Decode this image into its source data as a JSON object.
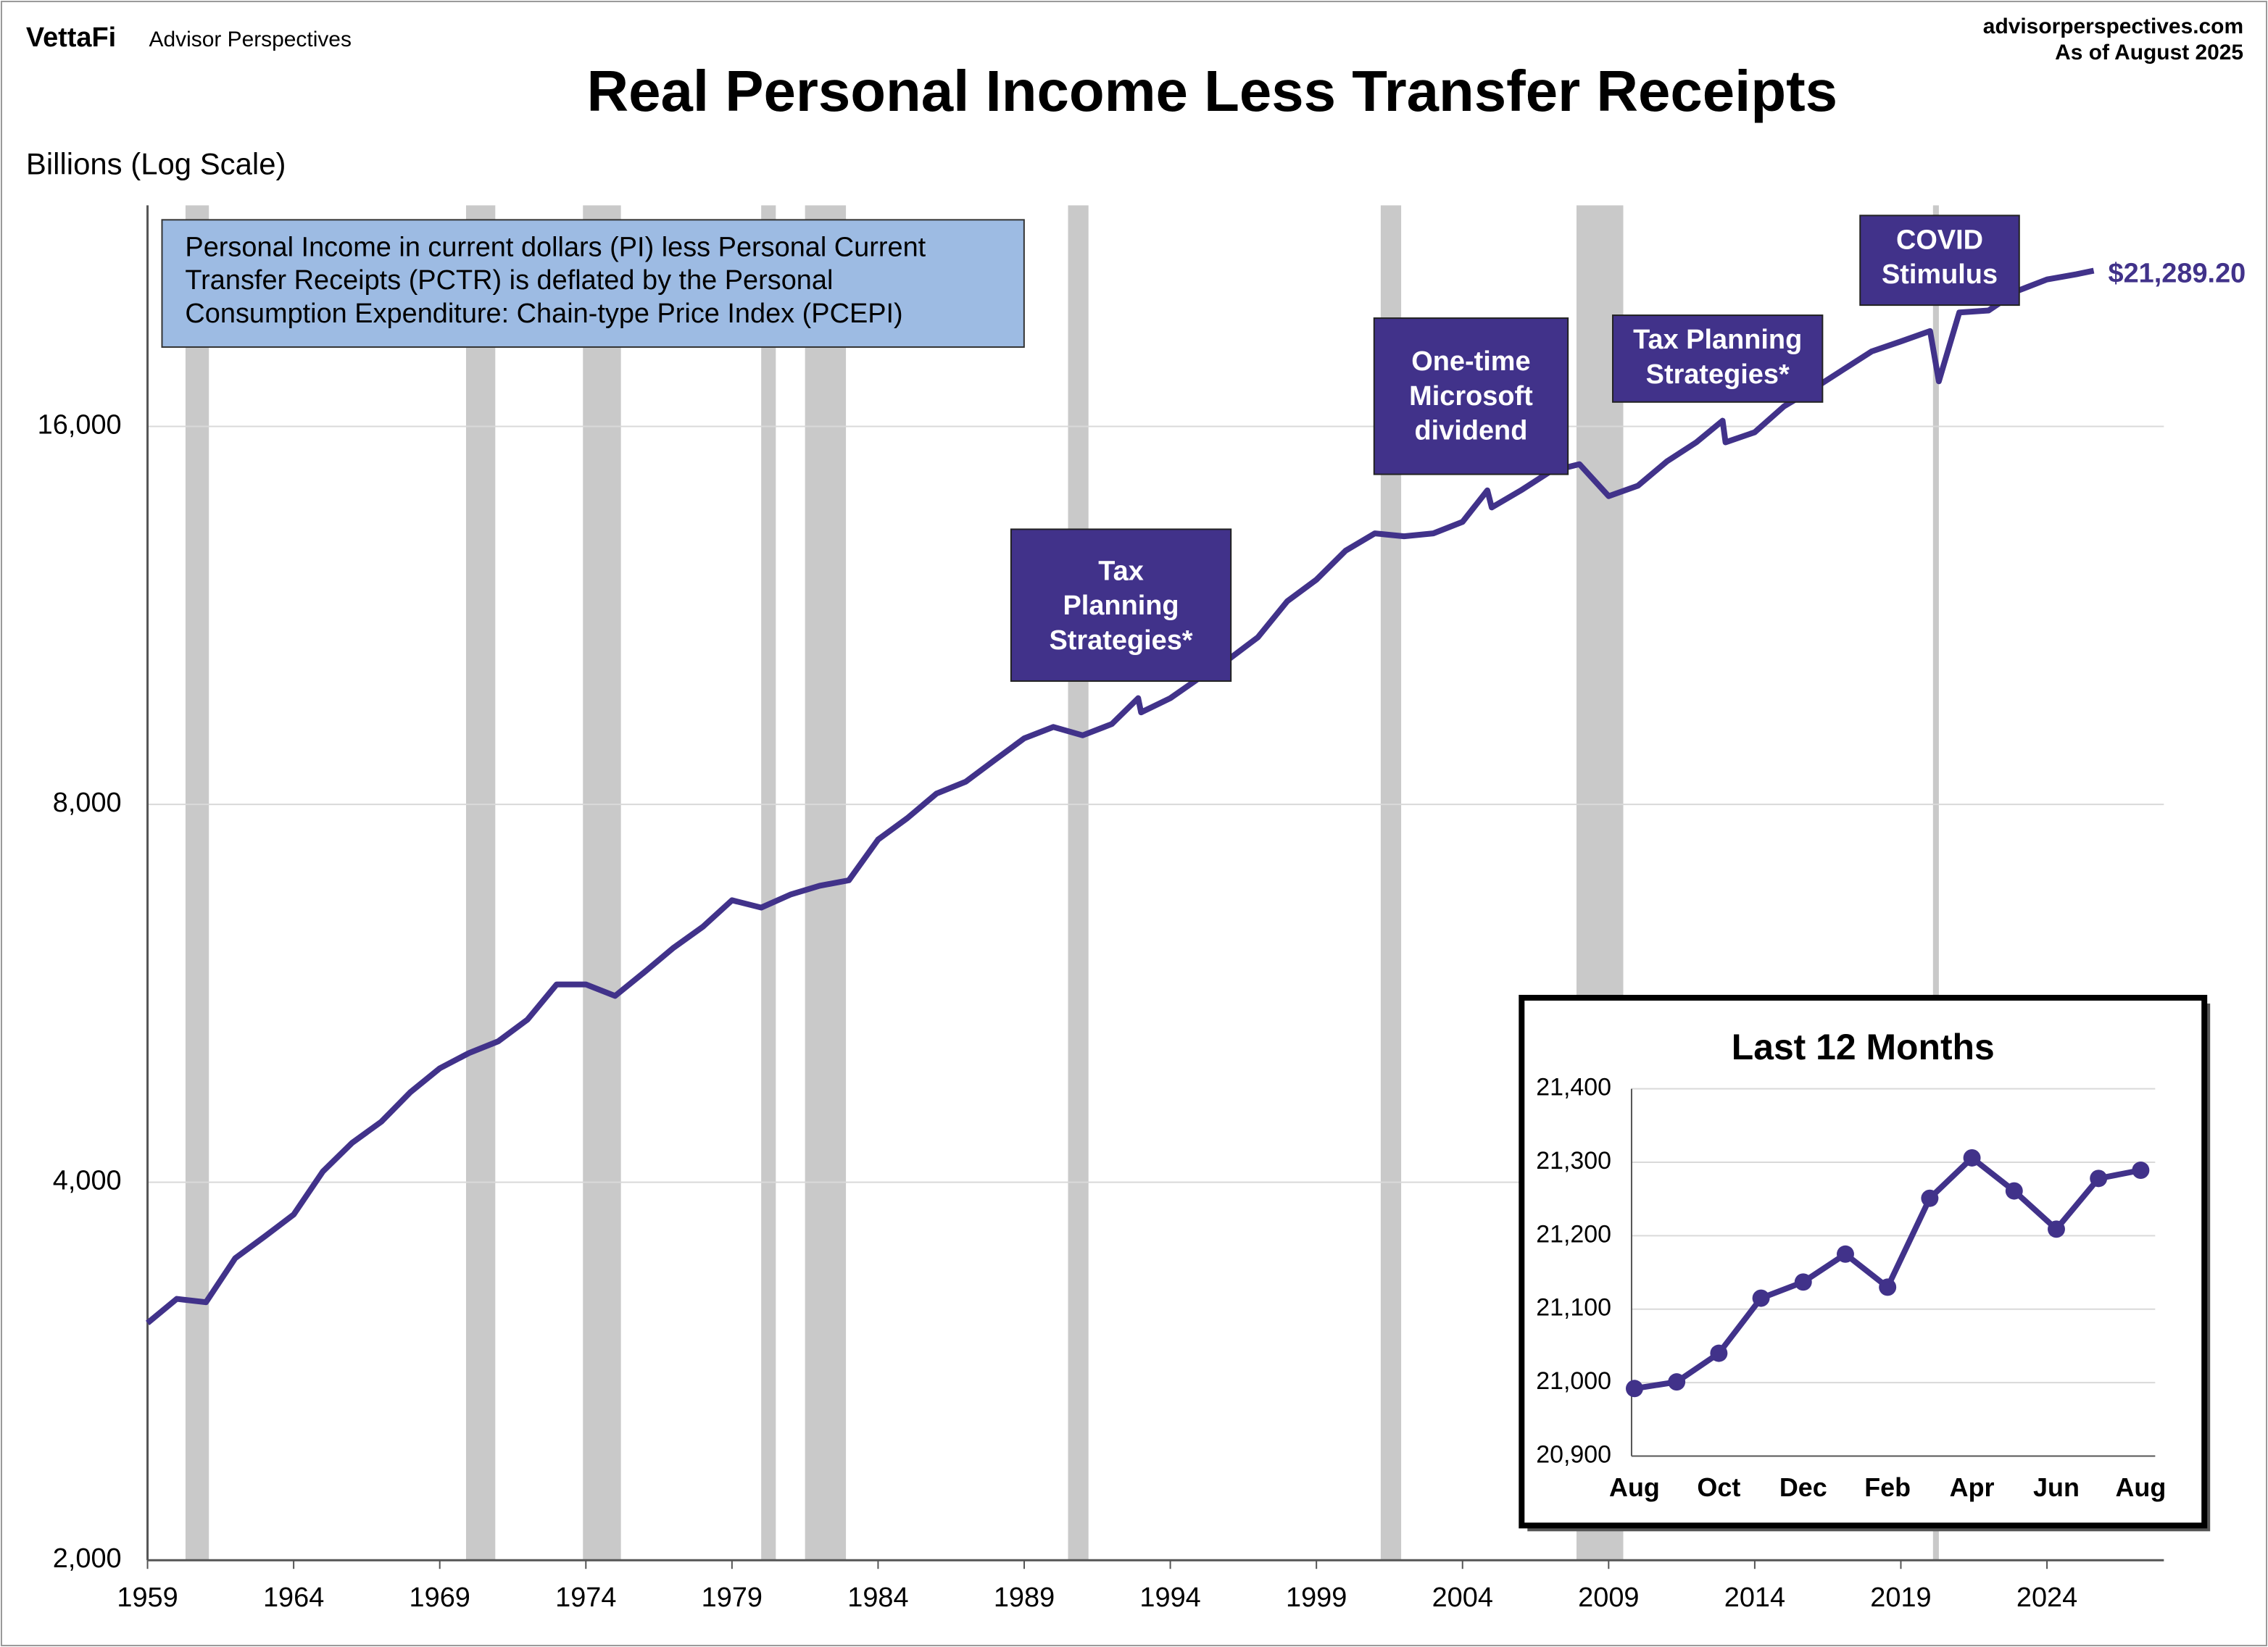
{
  "header": {
    "brand": "VettaFi",
    "brand_sub": "Advisor Perspectives",
    "site": "advisorperspectives.com",
    "as_of": "As of August 2025"
  },
  "chart_data": [
    {
      "type": "line",
      "title": "Real Personal Income Less Transfer Receipts",
      "y_label": "Billions (Log Scale)",
      "log_scale": true,
      "grid": true,
      "note": [
        "Personal Income in current dollars  (PI) less Personal Current",
        "Transfer Receipts (PCTR) is deflated by the Personal",
        "Consumption Expenditure:  Chain-type Price Index (PCEPI)"
      ],
      "annotations": [
        [
          "Tax",
          "Planning",
          "Strategies*"
        ],
        [
          "One-time",
          "Microsoft",
          "dividend"
        ],
        [
          "Tax Planning",
          "Strategies*"
        ],
        [
          "COVID",
          "Stimulus"
        ]
      ],
      "recessions": [
        [
          1960.3,
          1961.1
        ],
        [
          1969.9,
          1970.9
        ],
        [
          1973.9,
          1975.2
        ],
        [
          1980.0,
          1980.5
        ],
        [
          1981.5,
          1982.9
        ],
        [
          1990.5,
          1991.2
        ],
        [
          2001.2,
          2001.9
        ],
        [
          2007.9,
          2009.5
        ],
        [
          2020.1,
          2020.3
        ]
      ],
      "xlim": [
        1959,
        2028
      ],
      "xticks": [
        1959,
        1964,
        1969,
        1974,
        1979,
        1984,
        1989,
        1994,
        1999,
        2004,
        2009,
        2014,
        2019,
        2024
      ],
      "ylim": [
        2000,
        24000
      ],
      "yticks": [
        {
          "value": 2000,
          "label": "2,000"
        },
        {
          "value": 4000,
          "label": "4,000"
        },
        {
          "value": 8000,
          "label": "8,000"
        },
        {
          "value": 16000,
          "label": "16,000"
        }
      ],
      "x": [
        1959,
        1960,
        1961,
        1962,
        1963,
        1964,
        1965,
        1966,
        1967,
        1968,
        1969,
        1970,
        1971,
        1972,
        1973,
        1974,
        1975,
        1976,
        1977,
        1978,
        1979,
        1980,
        1981,
        1982,
        1983,
        1984,
        1985,
        1986,
        1987,
        1988,
        1989,
        1990,
        1991,
        1992,
        1992.9,
        1993,
        1994,
        1995,
        1996,
        1997,
        1998,
        1999,
        2000,
        2001,
        2002,
        2003,
        2004,
        2004.85,
        2005,
        2006,
        2007,
        2008,
        2009,
        2010,
        2011,
        2012,
        2012.9,
        2013,
        2014,
        2015,
        2016,
        2017,
        2018,
        2019,
        2020,
        2020.3,
        2021,
        2022,
        2023,
        2024,
        2025,
        2025.6
      ],
      "series": [
        {
          "color": "#41328a",
          "values": [
            3090,
            3230,
            3210,
            3480,
            3620,
            3770,
            4080,
            4300,
            4470,
            4720,
            4930,
            5070,
            5180,
            5390,
            5750,
            5750,
            5630,
            5880,
            6150,
            6390,
            6710,
            6620,
            6780,
            6890,
            6960,
            7500,
            7800,
            8160,
            8340,
            8680,
            9030,
            9220,
            9080,
            9270,
            9720,
            9470,
            9720,
            10090,
            10440,
            10870,
            11610,
            12080,
            12740,
            13150,
            13080,
            13150,
            13430,
            14230,
            13790,
            14230,
            14730,
            14930,
            14080,
            14350,
            15010,
            15540,
            16170,
            15540,
            15830,
            16600,
            17140,
            17740,
            18360,
            18700,
            19060,
            17380,
            19720,
            19790,
            20520,
            20950,
            21150,
            21289.2
          ],
          "value_labels": [
            null,
            null,
            null,
            null,
            null,
            null,
            null,
            null,
            null,
            null,
            null,
            null,
            null,
            null,
            null,
            null,
            null,
            null,
            null,
            null,
            null,
            null,
            null,
            null,
            null,
            null,
            null,
            null,
            null,
            null,
            null,
            null,
            null,
            null,
            null,
            null,
            null,
            null,
            null,
            null,
            null,
            null,
            null,
            null,
            null,
            null,
            null,
            null,
            null,
            null,
            null,
            null,
            null,
            null,
            null,
            null,
            null,
            null,
            null,
            null,
            null,
            null,
            null,
            null,
            null,
            null,
            null,
            null,
            null,
            null,
            null,
            "$21,289.20"
          ]
        }
      ]
    },
    {
      "type": "line",
      "title": "Last 12 Months",
      "grid": true,
      "categories": [
        "Aug",
        null,
        "Oct",
        null,
        "Dec",
        null,
        "Feb",
        null,
        "Apr",
        null,
        "Jun",
        null,
        "Aug"
      ],
      "ylim": [
        20900,
        21400
      ],
      "yticks": [
        {
          "value": 20900,
          "label": "20,900"
        },
        {
          "value": 21000,
          "label": "21,000"
        },
        {
          "value": 21100,
          "label": "21,100"
        },
        {
          "value": 21200,
          "label": "21,200"
        },
        {
          "value": 21300,
          "label": "21,300"
        },
        {
          "value": 21400,
          "label": "21,400"
        }
      ],
      "series": [
        {
          "color": "#41328a",
          "values": [
            20992,
            21001,
            21040,
            21115,
            21137,
            21175,
            21130,
            21251,
            21306,
            21261,
            21209,
            21278,
            21289.2
          ]
        }
      ]
    }
  ]
}
